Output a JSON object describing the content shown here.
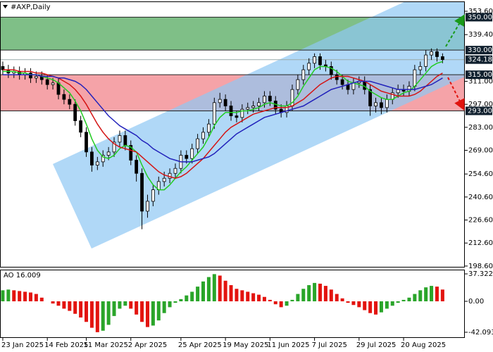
{
  "chart_data": [
    {
      "type": "candlestick",
      "title": "#AXP,Daily",
      "xlim": [
        -0.5,
        83
      ],
      "ylim": [
        197.7,
        359.6
      ],
      "xticks": [
        {
          "value": 0,
          "label": "23 Jan 2025"
        },
        {
          "value": 8,
          "label": "14 Feb 2025"
        },
        {
          "value": 15,
          "label": "11 Mar 2025"
        },
        {
          "value": 23,
          "label": "2 Apr 2025"
        },
        {
          "value": 32,
          "label": "25 Apr 2025"
        },
        {
          "value": 40,
          "label": "19 May 2025"
        },
        {
          "value": 48,
          "label": "11 Jun 2025"
        },
        {
          "value": 56,
          "label": "7 Jul 2025"
        },
        {
          "value": 64,
          "label": "29 Jul 2025"
        },
        {
          "value": 72,
          "label": "20 Aug 2025"
        }
      ],
      "yticks": [
        {
          "value": 353.6,
          "label": "353.60"
        },
        {
          "value": 339.4,
          "label": "339.40"
        },
        {
          "value": 311,
          "label": "311.00"
        },
        {
          "value": 297,
          "label": "297.00"
        },
        {
          "value": 283,
          "label": "283.00"
        },
        {
          "value": 269,
          "label": "269.00"
        },
        {
          "value": 254.6,
          "label": "254.60"
        },
        {
          "value": 240.6,
          "label": "240.60"
        },
        {
          "value": 226.6,
          "label": "226.60"
        },
        {
          "value": 212.6,
          "label": "212.60"
        },
        {
          "value": 198.6,
          "label": "198.60"
        }
      ],
      "open": [
        320,
        318,
        316,
        317,
        315,
        316,
        313,
        314,
        312,
        309,
        310,
        303,
        300,
        297,
        287,
        280,
        268,
        260,
        262,
        266,
        268,
        274,
        278,
        272,
        263,
        255,
        232,
        238,
        245,
        250,
        252,
        255,
        258,
        266,
        264,
        270,
        276,
        280,
        285,
        298,
        300,
        296,
        290,
        289,
        294,
        295,
        296,
        298,
        302,
        299,
        294,
        292,
        296,
        306,
        312,
        318,
        322,
        326,
        321,
        320,
        315,
        312,
        309,
        306,
        310,
        311,
        306,
        296,
        298,
        295,
        300,
        304,
        306,
        305,
        308,
        318,
        320,
        327,
        329,
        326
      ],
      "high": [
        323,
        321,
        320,
        320,
        319,
        319,
        317,
        317,
        315,
        313,
        313,
        306,
        303,
        300,
        290,
        283,
        271,
        265,
        269,
        271,
        277,
        281,
        281,
        275,
        266,
        258,
        242,
        248,
        253,
        256,
        258,
        261,
        269,
        269,
        273,
        279,
        283,
        288,
        301,
        304,
        303,
        299,
        293,
        297,
        298,
        299,
        301,
        305,
        305,
        302,
        297,
        299,
        309,
        315,
        321,
        325,
        328,
        328,
        324,
        323,
        318,
        315,
        312,
        313,
        314,
        314,
        309,
        301,
        301,
        303,
        307,
        309,
        309,
        311,
        321,
        323,
        330,
        331,
        331,
        328
      ],
      "low": [
        315,
        313,
        313,
        312,
        312,
        310,
        310,
        309,
        306,
        306,
        300,
        297,
        294,
        284,
        277,
        265,
        256,
        257,
        259,
        263,
        265,
        271,
        269,
        260,
        250,
        221,
        228,
        235,
        242,
        247,
        249,
        252,
        255,
        261,
        261,
        267,
        273,
        277,
        282,
        295,
        293,
        287,
        286,
        286,
        291,
        292,
        293,
        295,
        296,
        291,
        289,
        289,
        293,
        303,
        309,
        315,
        319,
        318,
        317,
        312,
        309,
        306,
        303,
        303,
        307,
        303,
        290,
        292,
        291,
        292,
        297,
        301,
        302,
        302,
        305,
        315,
        317,
        324,
        323,
        322
      ],
      "close": [
        318,
        316,
        317,
        315,
        316,
        313,
        314,
        312,
        309,
        310,
        303,
        300,
        297,
        287,
        280,
        268,
        260,
        262,
        266,
        268,
        274,
        278,
        272,
        263,
        255,
        232,
        238,
        245,
        250,
        252,
        255,
        258,
        266,
        264,
        270,
        276,
        280,
        285,
        298,
        300,
        296,
        290,
        289,
        294,
        295,
        296,
        298,
        302,
        299,
        294,
        292,
        296,
        306,
        312,
        318,
        322,
        326,
        321,
        320,
        315,
        312,
        309,
        306,
        310,
        311,
        306,
        296,
        298,
        295,
        300,
        304,
        306,
        305,
        308,
        318,
        320,
        327,
        329,
        326,
        324.18
      ],
      "series": [
        {
          "color": "#22cc22",
          "values": [
            317,
            317,
            317,
            316,
            316,
            315,
            315,
            314,
            313,
            312,
            310,
            307,
            304,
            299,
            293,
            285,
            276,
            269,
            265,
            264,
            266,
            270,
            272,
            271,
            268,
            260,
            253,
            248,
            245,
            245,
            248,
            252,
            256,
            259,
            263,
            267,
            271,
            277,
            284,
            289,
            292,
            292,
            292,
            293,
            293,
            294,
            295,
            297,
            298,
            297,
            296,
            296,
            298,
            302,
            308,
            313,
            318,
            320,
            320,
            319,
            317,
            314,
            311,
            310,
            309,
            308,
            305,
            303,
            301,
            300,
            300,
            302,
            304,
            305,
            308,
            312,
            316,
            320,
            322,
            323
          ]
        },
        {
          "color": "#d41414",
          "values": [
            318,
            318,
            318,
            317,
            317,
            317,
            316,
            316,
            315,
            314,
            313,
            311,
            309,
            306,
            302,
            297,
            291,
            285,
            280,
            276,
            273,
            271,
            270,
            269,
            268,
            265,
            262,
            259,
            256,
            254,
            253,
            252,
            253,
            255,
            258,
            261,
            264,
            268,
            272,
            276,
            280,
            283,
            285,
            287,
            289,
            291,
            292,
            293,
            294,
            295,
            295,
            295,
            296,
            298,
            300,
            303,
            306,
            309,
            311,
            313,
            314,
            314,
            314,
            313,
            312,
            311,
            309,
            307,
            305,
            304,
            303,
            302,
            302,
            302,
            303,
            305,
            308,
            311,
            314,
            316
          ]
        },
        {
          "color": "#2222bb",
          "values": [
            315,
            315,
            315,
            315,
            315,
            315,
            315,
            314,
            314,
            314,
            313,
            313,
            312,
            311,
            309,
            306,
            302,
            298,
            294,
            290,
            287,
            284,
            282,
            280,
            278,
            275,
            273,
            270,
            268,
            266,
            264,
            263,
            262,
            262,
            262,
            263,
            264,
            265,
            267,
            270,
            273,
            276,
            279,
            281,
            283,
            285,
            287,
            289,
            290,
            291,
            292,
            293,
            294,
            295,
            296,
            298,
            300,
            302,
            304,
            306,
            307,
            308,
            309,
            310,
            311,
            311,
            311,
            310,
            309,
            308,
            307,
            306,
            306,
            306,
            306,
            307,
            308,
            309,
            311,
            313
          ]
        }
      ],
      "zones": [
        {
          "from": 330,
          "to": 350,
          "color": "#7fbf87"
        },
        {
          "from": 293,
          "to": 315,
          "color": "#f5a3a8"
        }
      ],
      "levels": [
        {
          "value": 350,
          "label": "350.00"
        },
        {
          "value": 330,
          "label": "330.00"
        },
        {
          "value": 324.18,
          "label": "324.18"
        },
        {
          "value": 315,
          "label": "315.00"
        },
        {
          "value": 293,
          "label": "293.00"
        }
      ],
      "up_color": "#ffffff",
      "down_color": "#000000"
    },
    {
      "type": "oscillator",
      "title": "AO 16.009",
      "ylim": [
        -49.8,
        43.1
      ],
      "yticks": [
        37.322,
        {
          "value": 0,
          "label": "0.00"
        },
        -42.093
      ],
      "up_color": "#2aa52a",
      "down_color": "#e3140f",
      "values": [
        15,
        16,
        15,
        14,
        13,
        12,
        10,
        5,
        0,
        -3,
        -6,
        -10,
        -13,
        -17,
        -22,
        -28,
        -36,
        -42,
        -40,
        -32,
        -20,
        -10,
        -6,
        -10,
        -18,
        -28,
        -35,
        -33,
        -26,
        -16,
        -8,
        -2,
        3,
        8,
        13,
        20,
        27,
        33,
        37,
        35,
        28,
        22,
        17,
        15,
        13,
        11,
        9,
        6,
        2,
        -4,
        -8,
        -6,
        2,
        10,
        17,
        22,
        25,
        24,
        21,
        16,
        10,
        4,
        -2,
        -5,
        -8,
        -12,
        -16,
        -18,
        -15,
        -10,
        -6,
        -2,
        2,
        5,
        10,
        15,
        19,
        21,
        20,
        16.009
      ]
    }
  ]
}
